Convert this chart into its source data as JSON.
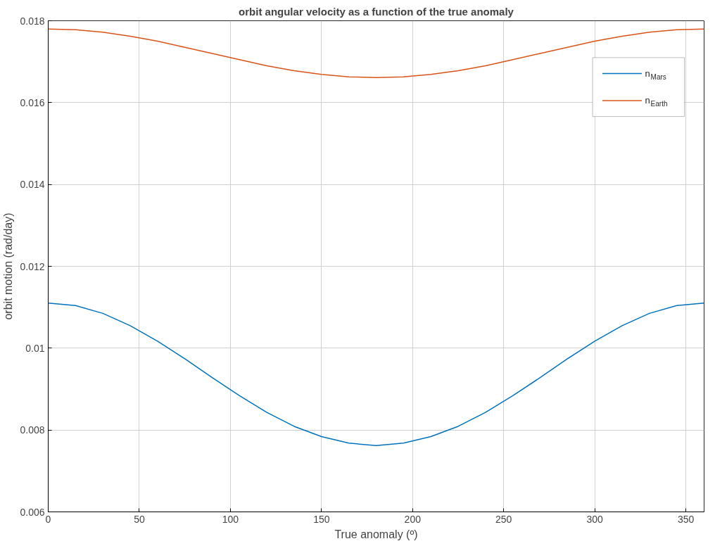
{
  "chart_data": {
    "type": "line",
    "title": "orbit angular velocity as a function of the true anomaly",
    "xlabel": "True anomaly (º)",
    "ylabel": "orbit motion (rad/day)",
    "x": [
      0,
      15,
      30,
      45,
      60,
      75,
      90,
      105,
      120,
      135,
      150,
      165,
      180,
      195,
      210,
      225,
      240,
      255,
      270,
      285,
      300,
      315,
      330,
      345,
      360
    ],
    "series": [
      {
        "name": "n$_{Mars}$",
        "color": "#0072bd",
        "values": [
          0.0111,
          0.01104,
          0.01085,
          0.01055,
          0.01017,
          0.00974,
          0.00928,
          0.00884,
          0.00843,
          0.00809,
          0.00784,
          0.00768,
          0.00762,
          0.00768,
          0.00784,
          0.00809,
          0.00843,
          0.00884,
          0.00928,
          0.00974,
          0.01017,
          0.01055,
          0.01085,
          0.01104,
          0.0111
        ]
      },
      {
        "name": "n$_{Earth}$",
        "color": "#d95319",
        "values": [
          0.0178,
          0.01778,
          0.01772,
          0.01762,
          0.0175,
          0.01735,
          0.0172,
          0.01705,
          0.0169,
          0.01678,
          0.01669,
          0.01663,
          0.01661,
          0.01663,
          0.01669,
          0.01678,
          0.0169,
          0.01705,
          0.0172,
          0.01735,
          0.0175,
          0.01762,
          0.01772,
          0.01778,
          0.0178
        ]
      }
    ],
    "xlim": [
      0,
      360
    ],
    "xticks": [
      0,
      50,
      100,
      150,
      200,
      250,
      300,
      350
    ],
    "ylim": [
      0.006,
      0.018
    ],
    "yticks": [
      0.006,
      0.008,
      0.01,
      0.012,
      0.014,
      0.016,
      0.018
    ],
    "grid": true,
    "legend": "top right",
    "marker": "none",
    "line_style": "solid"
  }
}
